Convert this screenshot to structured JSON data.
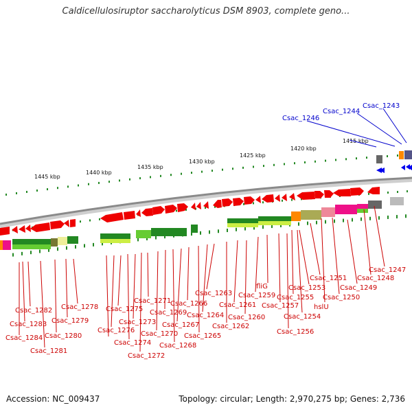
{
  "title": "Caldicellulosiruptor saccharolyticus DSM 8903, complete geno...",
  "footer": {
    "accession": "Accession: NC_009437",
    "stats": "Topology: circular; Length: 2,970,275 bp; Genes: 2,736"
  },
  "scale_labels": [
    "1445 kbp",
    "1440 kbp",
    "1435 kbp",
    "1430 kbp",
    "1425 kbp",
    "1420 kbp",
    "1415 kbp"
  ],
  "gene_labels_red": [
    "Csac_1247",
    "Csac_1248",
    "Csac_1249",
    "Csac_1250",
    "hslU",
    "Csac_1251",
    "Csac_1253",
    "Csac_1254",
    "Csac_1255",
    "Csac_1256",
    "Csac_1257",
    "Csac_1259",
    "fliG",
    "Csac_1260",
    "Csac_1261",
    "Csac_1262",
    "Csac_1263",
    "Csac_1264",
    "Csac_1265",
    "Csac_1266",
    "Csac_1267",
    "Csac_1268",
    "Csac_1269",
    "Csac_1270",
    "Csac_1271",
    "Csac_1272",
    "Csac_1273",
    "Csac_1274",
    "Csac_1275",
    "Csac_1276",
    "Csac_1278",
    "Csac_1279",
    "Csac_1280",
    "Csac_1281",
    "Csac_1282",
    "Csac_1283",
    "Csac_1284"
  ],
  "gene_labels_blue": [
    "Csac_1243",
    "Csac_1244",
    "Csac_1246"
  ],
  "colors": {
    "gene": "#ee0000",
    "backbone": "#888888",
    "tick": "#228822",
    "blue_gene": "#0000ee",
    "red_label": "#cc0000",
    "blue_label": "#0000cc"
  }
}
